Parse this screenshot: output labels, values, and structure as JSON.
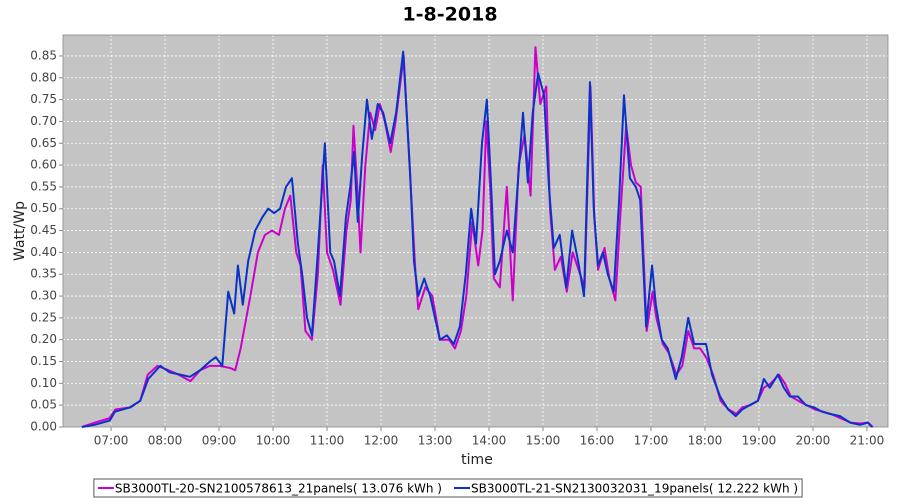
{
  "chart_data": {
    "type": "line",
    "title": "1-8-2018",
    "x_label": "time",
    "y_label": "Watt/Wp",
    "xlim": [
      6.11,
      21.39
    ],
    "ylim": [
      0,
      0.898
    ],
    "grid": true,
    "legend": "bottom",
    "xticks": [
      {
        "value": 7,
        "label": "07:00"
      },
      {
        "value": 8,
        "label": "08:00"
      },
      {
        "value": 9,
        "label": "09:00"
      },
      {
        "value": 10,
        "label": "10:00"
      },
      {
        "value": 11,
        "label": "11:00"
      },
      {
        "value": 12,
        "label": "12:00"
      },
      {
        "value": 13,
        "label": "13:00"
      },
      {
        "value": 14,
        "label": "14:00"
      },
      {
        "value": 15,
        "label": "15:00"
      },
      {
        "value": 16,
        "label": "16:00"
      },
      {
        "value": 17,
        "label": "17:00"
      },
      {
        "value": 18,
        "label": "18:00"
      },
      {
        "value": 19,
        "label": "19:00"
      },
      {
        "value": 20,
        "label": "20:00"
      },
      {
        "value": 21,
        "label": "21:00"
      }
    ],
    "yticks": [
      {
        "value": 0,
        "label": "0.00"
      },
      0.05,
      {
        "value": 0.1,
        "label": "0.10"
      },
      0.15,
      {
        "value": 0.2,
        "label": "0.20"
      },
      0.25,
      {
        "value": 0.3,
        "label": "0.30"
      },
      0.35,
      {
        "value": 0.4,
        "label": "0.40"
      },
      0.45,
      {
        "value": 0.5,
        "label": "0.50"
      },
      0.55,
      {
        "value": 0.6,
        "label": "0.60"
      },
      0.65,
      {
        "value": 0.7,
        "label": "0.70"
      },
      0.75,
      {
        "value": 0.8,
        "label": "0.80"
      },
      0.85
    ],
    "series": [
      {
        "name": "SB3000TL-20-SN2100578613_21panels( 13.076 kWh )",
        "color": "#cc00cc",
        "x": [
          6.46,
          6.7,
          6.97,
          7.08,
          7.36,
          7.54,
          7.68,
          7.86,
          8.07,
          8.25,
          8.47,
          8.65,
          8.83,
          9.01,
          9.21,
          9.3,
          9.4,
          9.58,
          9.72,
          9.85,
          9.98,
          10.11,
          10.22,
          10.32,
          10.43,
          10.51,
          10.6,
          10.72,
          10.83,
          10.92,
          11.0,
          11.11,
          11.25,
          11.36,
          11.44,
          11.49,
          11.56,
          11.62,
          11.71,
          11.8,
          11.89,
          11.98,
          12.07,
          12.18,
          12.27,
          12.42,
          12.55,
          12.64,
          12.69,
          12.82,
          12.95,
          13.09,
          13.26,
          13.37,
          13.48,
          13.58,
          13.69,
          13.8,
          13.88,
          13.95,
          14.02,
          14.09,
          14.2,
          14.33,
          14.44,
          14.55,
          14.66,
          14.77,
          14.86,
          14.95,
          15.06,
          15.13,
          15.22,
          15.33,
          15.44,
          15.55,
          15.66,
          15.77,
          15.88,
          15.95,
          16.02,
          16.14,
          16.23,
          16.34,
          16.44,
          16.54,
          16.63,
          16.72,
          16.81,
          16.92,
          17.03,
          17.1,
          17.22,
          17.33,
          17.47,
          17.58,
          17.69,
          17.8,
          17.91,
          18.02,
          18.15,
          18.29,
          18.44,
          18.58,
          18.69,
          18.84,
          18.98,
          19.09,
          19.22,
          19.37,
          19.48,
          19.59,
          19.73,
          19.88,
          20.04,
          20.19,
          20.33,
          20.51,
          20.7,
          20.88,
          21.02,
          21.11
        ],
        "values": [
          0.0,
          0.01,
          0.02,
          0.04,
          0.045,
          0.06,
          0.12,
          0.14,
          0.13,
          0.12,
          0.105,
          0.13,
          0.14,
          0.14,
          0.135,
          0.13,
          0.18,
          0.3,
          0.4,
          0.44,
          0.45,
          0.44,
          0.5,
          0.53,
          0.4,
          0.37,
          0.22,
          0.2,
          0.35,
          0.6,
          0.4,
          0.36,
          0.28,
          0.45,
          0.52,
          0.69,
          0.55,
          0.4,
          0.6,
          0.72,
          0.68,
          0.74,
          0.7,
          0.63,
          0.7,
          0.85,
          0.55,
          0.35,
          0.27,
          0.32,
          0.3,
          0.2,
          0.2,
          0.18,
          0.22,
          0.3,
          0.47,
          0.37,
          0.45,
          0.7,
          0.55,
          0.34,
          0.32,
          0.55,
          0.29,
          0.6,
          0.67,
          0.53,
          0.87,
          0.74,
          0.78,
          0.5,
          0.36,
          0.39,
          0.31,
          0.4,
          0.36,
          0.32,
          0.78,
          0.48,
          0.36,
          0.41,
          0.34,
          0.29,
          0.5,
          0.69,
          0.6,
          0.56,
          0.55,
          0.22,
          0.31,
          0.25,
          0.19,
          0.17,
          0.12,
          0.14,
          0.22,
          0.18,
          0.18,
          0.16,
          0.12,
          0.06,
          0.04,
          0.03,
          0.045,
          0.05,
          0.06,
          0.09,
          0.1,
          0.12,
          0.1,
          0.07,
          0.06,
          0.05,
          0.04,
          0.035,
          0.03,
          0.02,
          0.01,
          0.008,
          0.01,
          0.0
        ]
      },
      {
        "name": "SB3000TL-21-SN2130032031_19panels( 12.222 kWh )",
        "color": "#0a32c8",
        "x": [
          6.46,
          6.7,
          6.98,
          7.07,
          7.35,
          7.54,
          7.69,
          7.91,
          8.09,
          8.28,
          8.46,
          8.65,
          8.83,
          8.94,
          9.06,
          9.17,
          9.28,
          9.35,
          9.44,
          9.54,
          9.67,
          9.8,
          9.91,
          10.02,
          10.13,
          10.24,
          10.35,
          10.46,
          10.54,
          10.63,
          10.72,
          10.83,
          10.96,
          11.06,
          11.13,
          11.24,
          11.35,
          11.43,
          11.5,
          11.57,
          11.65,
          11.74,
          11.83,
          11.94,
          12.04,
          12.17,
          12.28,
          12.41,
          12.54,
          12.61,
          12.69,
          12.8,
          12.91,
          13.09,
          13.22,
          13.35,
          13.46,
          13.57,
          13.67,
          13.76,
          13.87,
          13.96,
          14.04,
          14.11,
          14.2,
          14.33,
          14.44,
          14.54,
          14.63,
          14.72,
          14.81,
          14.91,
          15.02,
          15.11,
          15.2,
          15.31,
          15.43,
          15.54,
          15.65,
          15.76,
          15.87,
          15.94,
          16.02,
          16.11,
          16.2,
          16.31,
          16.41,
          16.5,
          16.61,
          16.72,
          16.8,
          16.91,
          17.02,
          17.09,
          17.2,
          17.31,
          17.46,
          17.57,
          17.69,
          17.8,
          17.91,
          18.02,
          18.13,
          18.28,
          18.43,
          18.57,
          18.69,
          18.83,
          18.98,
          19.09,
          19.2,
          19.35,
          19.46,
          19.57,
          19.72,
          19.87,
          20.02,
          20.17,
          20.31,
          20.5,
          20.69,
          20.87,
          21.02,
          21.09
        ],
        "values": [
          0.0,
          0.005,
          0.015,
          0.035,
          0.045,
          0.06,
          0.11,
          0.14,
          0.125,
          0.12,
          0.115,
          0.13,
          0.15,
          0.16,
          0.14,
          0.31,
          0.26,
          0.37,
          0.28,
          0.38,
          0.45,
          0.48,
          0.5,
          0.49,
          0.5,
          0.55,
          0.57,
          0.42,
          0.35,
          0.25,
          0.21,
          0.4,
          0.65,
          0.4,
          0.38,
          0.3,
          0.48,
          0.55,
          0.63,
          0.47,
          0.62,
          0.75,
          0.66,
          0.74,
          0.72,
          0.65,
          0.72,
          0.86,
          0.58,
          0.38,
          0.3,
          0.34,
          0.3,
          0.2,
          0.21,
          0.19,
          0.23,
          0.35,
          0.5,
          0.42,
          0.65,
          0.75,
          0.55,
          0.35,
          0.38,
          0.45,
          0.4,
          0.57,
          0.72,
          0.56,
          0.72,
          0.81,
          0.76,
          0.55,
          0.41,
          0.44,
          0.32,
          0.45,
          0.38,
          0.3,
          0.79,
          0.5,
          0.37,
          0.4,
          0.35,
          0.31,
          0.52,
          0.76,
          0.57,
          0.55,
          0.52,
          0.23,
          0.37,
          0.28,
          0.2,
          0.18,
          0.11,
          0.16,
          0.25,
          0.19,
          0.19,
          0.19,
          0.12,
          0.07,
          0.04,
          0.025,
          0.04,
          0.05,
          0.06,
          0.11,
          0.09,
          0.12,
          0.09,
          0.07,
          0.07,
          0.05,
          0.045,
          0.035,
          0.03,
          0.025,
          0.01,
          0.005,
          0.01,
          0.0
        ]
      }
    ]
  }
}
